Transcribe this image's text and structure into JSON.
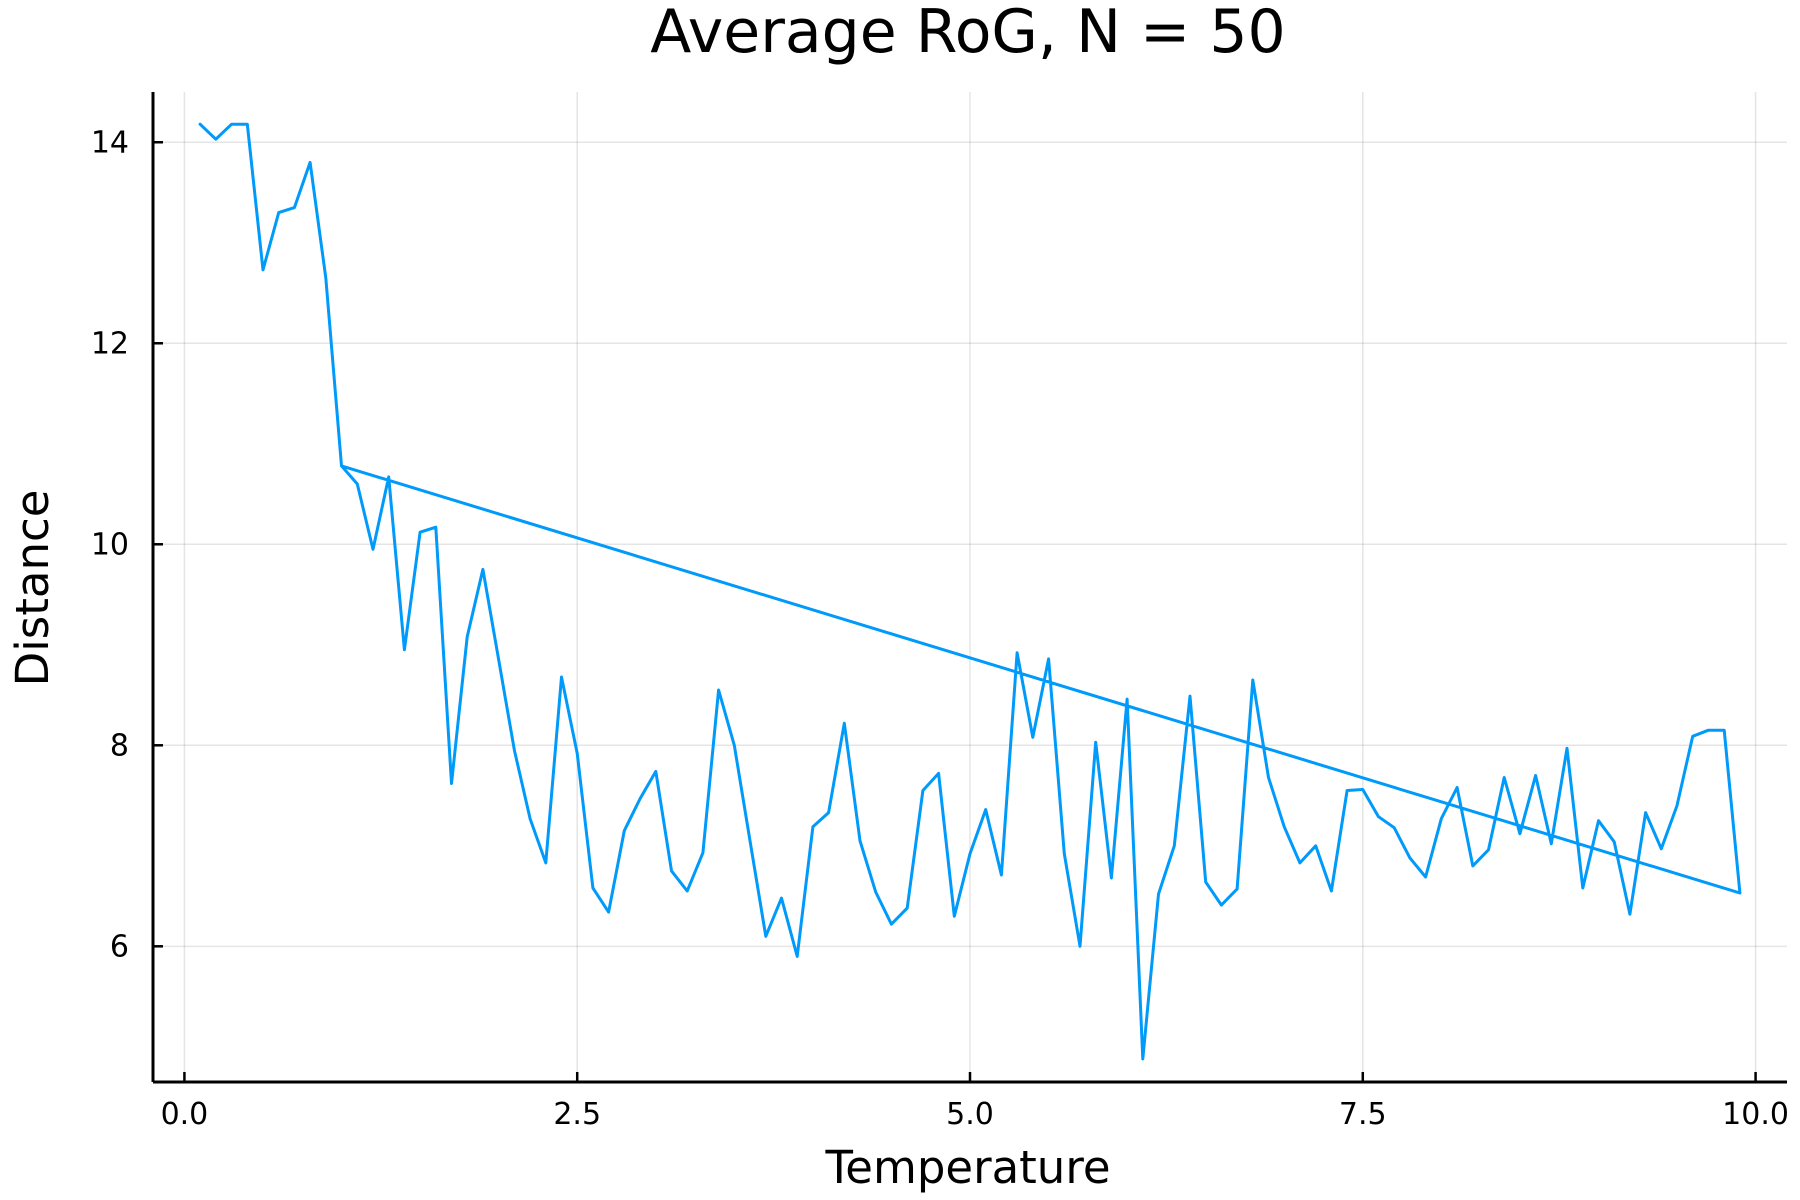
{
  "chart_data": {
    "type": "line",
    "title": "Average RoG, N = 50",
    "xlabel": "Temperature",
    "ylabel": "Distance",
    "xlim": [
      -0.2,
      10.2
    ],
    "ylim": [
      4.65,
      14.5
    ],
    "xticks": [
      0,
      2.5,
      5,
      7.5,
      10
    ],
    "xtick_labels": [
      "0.0",
      "2.5",
      "5.0",
      "7.5",
      "10.0"
    ],
    "yticks": [
      6,
      8,
      10,
      12,
      14
    ],
    "ytick_labels": [
      "6",
      "8",
      "10",
      "12",
      "14"
    ],
    "grid": true,
    "legend": "none",
    "series": [
      {
        "name": "y1",
        "color": "#009AFA",
        "x": [
          0.1,
          0.2,
          0.3,
          0.4,
          0.5,
          0.6,
          0.7,
          0.8,
          0.9,
          1.0,
          1.1,
          1.2,
          1.3,
          1.4,
          1.5,
          1.6,
          1.7,
          1.8,
          1.9,
          2.0,
          2.1,
          2.2,
          2.3,
          2.4,
          2.5,
          2.6,
          2.7,
          2.8,
          2.9,
          3.0,
          3.1,
          3.2,
          3.3,
          3.4,
          3.5,
          3.6,
          3.7,
          3.8,
          3.9,
          4.0,
          4.1,
          4.2,
          4.3,
          4.4,
          4.5,
          4.6,
          4.7,
          4.8,
          4.9,
          5.0,
          5.1,
          5.2,
          5.3,
          5.4,
          5.5,
          5.6,
          5.7,
          5.8,
          5.9,
          6.0,
          6.1,
          6.2,
          6.3,
          6.4,
          6.5,
          6.6,
          6.7,
          6.8,
          6.9,
          7.0,
          7.1,
          7.2,
          7.3,
          7.4,
          7.5,
          7.6,
          7.7,
          7.8,
          7.9,
          8.0,
          8.1,
          8.2,
          8.3,
          8.4,
          8.5,
          8.6,
          8.7,
          8.8,
          8.9,
          9.0,
          9.1,
          9.2,
          9.3,
          9.4,
          9.5,
          9.6,
          9.7,
          9.8,
          9.9,
          1.0
        ],
        "y": [
          14.18,
          14.03,
          14.18,
          14.18,
          12.73,
          13.3,
          13.35,
          13.8,
          12.65,
          10.78,
          10.6,
          9.95,
          10.67,
          8.95,
          10.12,
          10.17,
          7.62,
          9.08,
          9.75,
          8.85,
          7.95,
          7.27,
          6.83,
          8.68,
          7.92,
          6.58,
          6.34,
          7.15,
          7.47,
          7.74,
          6.75,
          6.55,
          6.93,
          8.55,
          8.0,
          7.05,
          6.1,
          6.48,
          5.9,
          7.19,
          7.33,
          8.22,
          7.05,
          6.54,
          6.22,
          6.38,
          7.55,
          7.72,
          6.3,
          6.92,
          7.36,
          6.71,
          8.92,
          8.08,
          8.86,
          6.92,
          6.0,
          8.03,
          6.68,
          8.46,
          4.88,
          6.52,
          7.0,
          8.49,
          6.64,
          6.41,
          6.57,
          8.65,
          7.68,
          7.19,
          6.83,
          7.0,
          6.55,
          7.55,
          7.56,
          7.29,
          7.18,
          6.88,
          6.69,
          7.27,
          7.58,
          6.8,
          6.96,
          7.68,
          7.12,
          7.7,
          7.02,
          7.97,
          6.58,
          7.25,
          7.04,
          6.32,
          7.33,
          6.97,
          7.4,
          8.09,
          8.15,
          8.15,
          6.53,
          10.78
        ]
      }
    ]
  }
}
